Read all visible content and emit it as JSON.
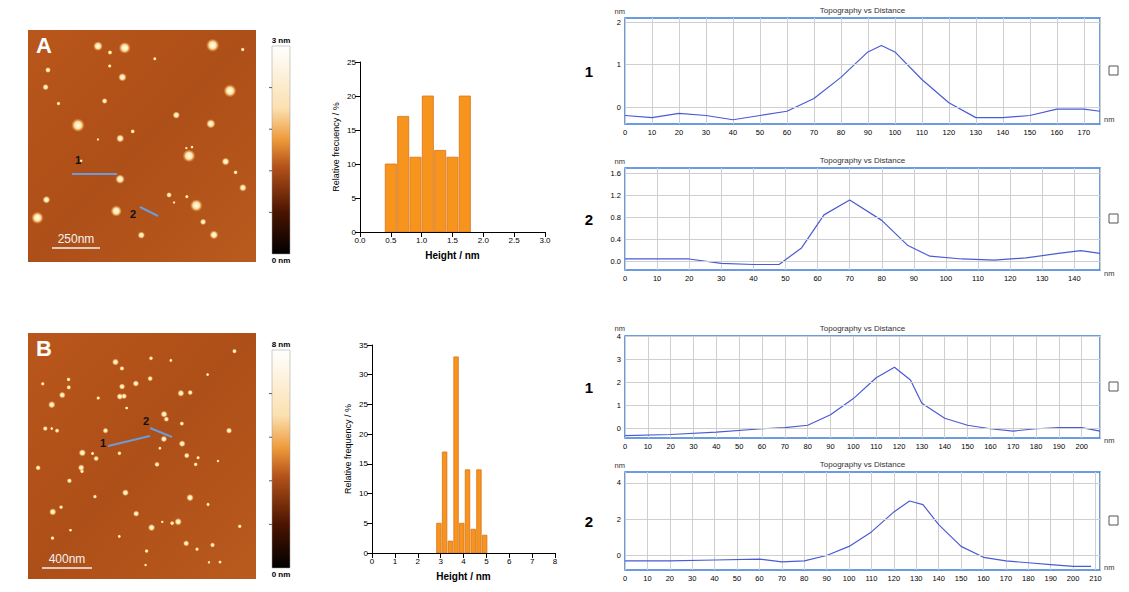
{
  "images": [
    {
      "label": "A",
      "scale_bar": "250nm",
      "profile_labels": [
        "1",
        "2"
      ],
      "colorbar": {
        "range": [
          0,
          3
        ],
        "ticks": [
          {
            "value": 0,
            "label": "0 nm"
          },
          {
            "value": 3,
            "label": "3 nm"
          }
        ]
      }
    },
    {
      "label": "B",
      "scale_bar": "400nm",
      "profile_labels": [
        "1",
        "2"
      ],
      "colorbar": {
        "range": [
          0,
          8
        ],
        "ticks": [
          {
            "value": 0,
            "label": "0 nm"
          },
          {
            "value": 8,
            "label": "8 nm"
          }
        ]
      }
    }
  ],
  "chart_data": [
    {
      "type": "histogram",
      "xlabel": "Height / nm",
      "ylabel": "Relative frecuency / %",
      "bins": [
        0.4,
        0.6,
        0.8,
        1.0,
        1.2,
        1.4,
        1.6,
        1.8
      ],
      "values": [
        10,
        17,
        11,
        20,
        12,
        11,
        20
      ],
      "color": "#f7941d",
      "xlim": [
        0,
        3
      ],
      "xticks": [
        {
          "value": 0,
          "label": "0.0"
        },
        {
          "value": 0.5,
          "label": "0.5"
        },
        {
          "value": 1,
          "label": "1.0"
        },
        {
          "value": 1.5,
          "label": "1.5"
        },
        {
          "value": 2,
          "label": "2.0"
        },
        {
          "value": 2.5,
          "label": "2.5"
        },
        {
          "value": 3,
          "label": "3.0"
        }
      ],
      "ylim": [
        0,
        25
      ],
      "yticks": [
        0,
        5,
        10,
        15,
        20,
        25
      ]
    },
    {
      "type": "line",
      "title": "Topography vs Distance",
      "label": "1",
      "xlabel": "nm",
      "ylabel": "nm",
      "x": [
        0,
        10,
        20,
        30,
        40,
        50,
        60,
        70,
        80,
        90,
        95,
        100,
        110,
        120,
        130,
        140,
        150,
        160,
        170,
        176
      ],
      "values": [
        -0.2,
        -0.25,
        -0.15,
        -0.2,
        -0.3,
        -0.2,
        -0.1,
        0.2,
        0.7,
        1.3,
        1.45,
        1.3,
        0.65,
        0.1,
        -0.25,
        -0.25,
        -0.2,
        -0.05,
        -0.05,
        -0.1
      ],
      "color": "#4a5bd4",
      "xlim": [
        0,
        176
      ],
      "xticks": [
        0,
        10,
        20,
        30,
        40,
        50,
        60,
        70,
        80,
        90,
        100,
        110,
        120,
        130,
        140,
        150,
        160,
        170
      ],
      "ylim": [
        -0.4,
        2.1
      ],
      "yticks": [
        0,
        1,
        2
      ],
      "grid": true
    },
    {
      "type": "line",
      "title": "Topography vs Distance",
      "label": "2",
      "xlabel": "nm",
      "ylabel": "nm",
      "x": [
        0,
        10,
        20,
        30,
        40,
        48,
        55,
        62,
        70,
        80,
        88,
        95,
        105,
        115,
        125,
        135,
        142,
        148
      ],
      "values": [
        0.05,
        0.05,
        0.05,
        -0.03,
        -0.05,
        -0.05,
        0.25,
        0.85,
        1.12,
        0.75,
        0.3,
        0.1,
        0.05,
        0.03,
        0.07,
        0.15,
        0.2,
        0.15
      ],
      "color": "#4a5bd4",
      "xlim": [
        0,
        148
      ],
      "xticks": [
        0,
        10,
        20,
        30,
        40,
        50,
        60,
        70,
        80,
        90,
        100,
        110,
        120,
        130,
        140
      ],
      "ylim": [
        -0.15,
        1.7
      ],
      "yticks": [
        {
          "value": 0,
          "label": "0.0"
        },
        {
          "value": 0.4,
          "label": "0.4"
        },
        {
          "value": 0.8,
          "label": "0.8"
        },
        {
          "value": 1.2,
          "label": "1.2"
        },
        {
          "value": 1.6,
          "label": "1.6"
        }
      ],
      "grid": true
    },
    {
      "type": "histogram",
      "xlabel": "Height / nm",
      "ylabel": "Relative frequency / %",
      "bins": [
        2.8,
        3.05,
        3.3,
        3.55,
        3.8,
        4.05,
        4.3,
        4.55,
        4.8,
        5.05
      ],
      "values": [
        5,
        17,
        2,
        33,
        5,
        14,
        4,
        14,
        3
      ],
      "color": "#f7941d",
      "xlim": [
        0,
        8
      ],
      "xticks": [
        0,
        1,
        2,
        3,
        4,
        5,
        6,
        7,
        8
      ],
      "ylim": [
        0,
        35
      ],
      "yticks": [
        0,
        5,
        10,
        15,
        20,
        25,
        30,
        35
      ]
    },
    {
      "type": "line",
      "title": "Topography vs Distance",
      "label": "1",
      "xlabel": "nm",
      "ylabel": "nm",
      "x": [
        0,
        20,
        40,
        60,
        70,
        80,
        90,
        100,
        110,
        118,
        125,
        130,
        140,
        150,
        160,
        170,
        180,
        190,
        200,
        208
      ],
      "values": [
        -0.3,
        -0.25,
        -0.15,
        0,
        0.05,
        0.15,
        0.6,
        1.3,
        2.2,
        2.65,
        2.1,
        1.1,
        0.45,
        0.15,
        0,
        -0.1,
        0,
        0.05,
        0.05,
        -0.1
      ],
      "color": "#4a5bd4",
      "xlim": [
        0,
        208
      ],
      "xticks": [
        0,
        10,
        20,
        30,
        40,
        50,
        60,
        70,
        80,
        90,
        100,
        110,
        120,
        130,
        140,
        150,
        160,
        170,
        180,
        190,
        200
      ],
      "ylim": [
        -0.4,
        4
      ],
      "yticks": [
        0,
        1,
        2,
        3,
        4
      ],
      "grid": true
    },
    {
      "type": "line",
      "title": "Topography vs Distance",
      "label": "2",
      "xlabel": "nm",
      "ylabel": "nm",
      "x": [
        0,
        20,
        40,
        60,
        70,
        80,
        90,
        100,
        110,
        120,
        127,
        133,
        140,
        150,
        160,
        170,
        180,
        190,
        200,
        208
      ],
      "values": [
        -0.3,
        -0.3,
        -0.25,
        -0.2,
        -0.35,
        -0.3,
        0,
        0.5,
        1.3,
        2.4,
        3.0,
        2.8,
        1.7,
        0.5,
        -0.1,
        -0.3,
        -0.4,
        -0.5,
        -0.6,
        -0.6
      ],
      "color": "#4a5bd4",
      "xlim": [
        0,
        212
      ],
      "xticks": [
        0,
        10,
        20,
        30,
        40,
        50,
        60,
        70,
        80,
        90,
        100,
        110,
        120,
        130,
        140,
        150,
        160,
        170,
        180,
        190,
        200,
        210
      ],
      "ylim": [
        -0.8,
        4.6
      ],
      "yticks": [
        0,
        2,
        4
      ],
      "grid": true
    }
  ]
}
